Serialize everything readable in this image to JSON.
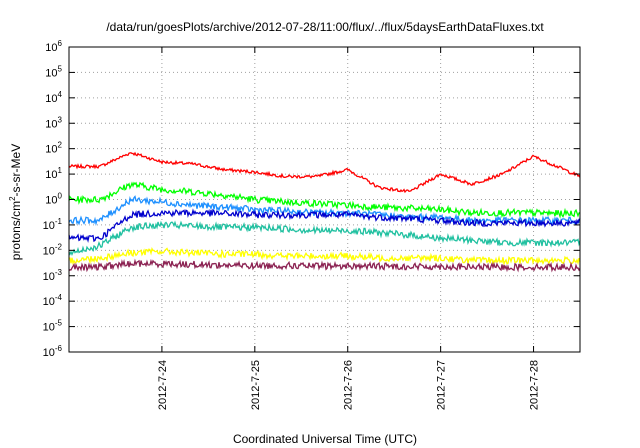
{
  "chart_data": {
    "type": "line",
    "title": "/data/run/goesPlots/archive/2012-07-28/11:00/flux/../flux/5daysEarthDataFluxes.txt",
    "xlabel": "Coordinated Universal Time (UTC)",
    "ylabel": "protons/cm²-s-sr-MeV",
    "ylabel_base": "protons/cm",
    "ylabel_sup": "2",
    "ylabel_rest": "-s-sr-MeV",
    "x_scale": "time",
    "xlim": [
      "2012-07-23T00:00",
      "2012-07-28T12:00"
    ],
    "x_ticks": [
      {
        "label": "2012-7-24",
        "date": "2012-07-24T00:00"
      },
      {
        "label": "2012-7-25",
        "date": "2012-07-25T00:00"
      },
      {
        "label": "2012-7-26",
        "date": "2012-07-26T00:00"
      },
      {
        "label": "2012-7-27",
        "date": "2012-07-27T00:00"
      },
      {
        "label": "2012-7-28",
        "date": "2012-07-28T00:00"
      }
    ],
    "y_scale": "log",
    "ylim": [
      1e-06,
      1000000.0
    ],
    "y_ticks": [
      {
        "base": "10",
        "exp": "6"
      },
      {
        "base": "10",
        "exp": "5"
      },
      {
        "base": "10",
        "exp": "4"
      },
      {
        "base": "10",
        "exp": "3"
      },
      {
        "base": "10",
        "exp": "2"
      },
      {
        "base": "10",
        "exp": "1"
      },
      {
        "base": "10",
        "exp": "0"
      },
      {
        "base": "10",
        "exp": "-1"
      },
      {
        "base": "10",
        "exp": "-2"
      },
      {
        "base": "10",
        "exp": "-3"
      },
      {
        "base": "10",
        "exp": "-4"
      },
      {
        "base": "10",
        "exp": "-5"
      },
      {
        "base": "10",
        "exp": "-6"
      }
    ],
    "grid": true,
    "legend": "none",
    "series": [
      {
        "color": "#ff0000",
        "x": [
          "2012-07-23T00:00",
          "2012-07-23T08:00",
          "2012-07-23T16:00",
          "2012-07-24T00:00",
          "2012-07-24T08:00",
          "2012-07-24T16:00",
          "2012-07-25T00:00",
          "2012-07-25T08:00",
          "2012-07-25T16:00",
          "2012-07-26T00:00",
          "2012-07-26T08:00",
          "2012-07-26T16:00",
          "2012-07-27T00:00",
          "2012-07-27T08:00",
          "2012-07-27T16:00",
          "2012-07-28T00:00",
          "2012-07-28T08:00",
          "2012-07-28T12:00"
        ],
        "y": [
          20,
          20,
          70,
          30,
          25,
          15,
          12,
          8,
          8,
          15,
          3,
          2,
          10,
          4,
          10,
          50,
          15,
          8
        ]
      },
      {
        "color": "#00ff00",
        "x": [
          "2012-07-23T00:00",
          "2012-07-23T08:00",
          "2012-07-23T16:00",
          "2012-07-24T00:00",
          "2012-07-24T08:00",
          "2012-07-24T16:00",
          "2012-07-25T00:00",
          "2012-07-25T08:00",
          "2012-07-25T16:00",
          "2012-07-26T00:00",
          "2012-07-26T08:00",
          "2012-07-26T16:00",
          "2012-07-27T00:00",
          "2012-07-27T08:00",
          "2012-07-27T16:00",
          "2012-07-28T00:00",
          "2012-07-28T08:00",
          "2012-07-28T12:00"
        ],
        "y": [
          1,
          1,
          4,
          2.5,
          2,
          1.5,
          1,
          0.8,
          0.7,
          0.6,
          0.5,
          0.45,
          0.4,
          0.3,
          0.3,
          0.3,
          0.28,
          0.3
        ]
      },
      {
        "color": "#1e90ff",
        "x": [
          "2012-07-23T00:00",
          "2012-07-23T08:00",
          "2012-07-23T16:00",
          "2012-07-24T00:00",
          "2012-07-24T08:00",
          "2012-07-24T16:00",
          "2012-07-25T00:00",
          "2012-07-25T08:00",
          "2012-07-25T16:00",
          "2012-07-26T00:00",
          "2012-07-26T08:00",
          "2012-07-26T16:00",
          "2012-07-27T00:00",
          "2012-07-27T08:00",
          "2012-07-27T16:00",
          "2012-07-28T00:00",
          "2012-07-28T08:00",
          "2012-07-28T12:00"
        ],
        "y": [
          0.15,
          0.15,
          1,
          0.8,
          0.6,
          0.5,
          0.4,
          0.35,
          0.3,
          0.3,
          0.25,
          0.2,
          0.2,
          0.15,
          0.15,
          0.15,
          0.15,
          0.15
        ]
      },
      {
        "color": "#0000cd",
        "x": [
          "2012-07-23T00:00",
          "2012-07-23T08:00",
          "2012-07-23T16:00",
          "2012-07-24T00:00",
          "2012-07-24T08:00",
          "2012-07-24T16:00",
          "2012-07-25T00:00",
          "2012-07-25T08:00",
          "2012-07-25T16:00",
          "2012-07-26T00:00",
          "2012-07-26T08:00",
          "2012-07-26T16:00",
          "2012-07-27T00:00",
          "2012-07-27T08:00",
          "2012-07-27T16:00",
          "2012-07-28T00:00",
          "2012-07-28T08:00",
          "2012-07-28T12:00"
        ],
        "y": [
          0.03,
          0.03,
          0.25,
          0.3,
          0.3,
          0.28,
          0.25,
          0.25,
          0.25,
          0.25,
          0.2,
          0.18,
          0.15,
          0.12,
          0.12,
          0.12,
          0.12,
          0.12
        ]
      },
      {
        "color": "#20c0a0",
        "x": [
          "2012-07-23T00:00",
          "2012-07-23T08:00",
          "2012-07-23T16:00",
          "2012-07-24T00:00",
          "2012-07-24T08:00",
          "2012-07-24T16:00",
          "2012-07-25T00:00",
          "2012-07-25T08:00",
          "2012-07-25T16:00",
          "2012-07-26T00:00",
          "2012-07-26T08:00",
          "2012-07-26T16:00",
          "2012-07-27T00:00",
          "2012-07-27T08:00",
          "2012-07-27T16:00",
          "2012-07-28T00:00",
          "2012-07-28T08:00",
          "2012-07-28T12:00"
        ],
        "y": [
          0.008,
          0.015,
          0.08,
          0.1,
          0.09,
          0.08,
          0.08,
          0.07,
          0.06,
          0.06,
          0.05,
          0.04,
          0.03,
          0.025,
          0.02,
          0.02,
          0.02,
          0.02
        ]
      },
      {
        "color": "#ffff00",
        "x": [
          "2012-07-23T00:00",
          "2012-07-23T08:00",
          "2012-07-23T16:00",
          "2012-07-24T00:00",
          "2012-07-24T08:00",
          "2012-07-24T16:00",
          "2012-07-25T00:00",
          "2012-07-25T08:00",
          "2012-07-25T16:00",
          "2012-07-26T00:00",
          "2012-07-26T08:00",
          "2012-07-26T16:00",
          "2012-07-27T00:00",
          "2012-07-27T08:00",
          "2012-07-27T16:00",
          "2012-07-28T00:00",
          "2012-07-28T08:00",
          "2012-07-28T12:00"
        ],
        "y": [
          0.004,
          0.005,
          0.008,
          0.009,
          0.008,
          0.007,
          0.007,
          0.006,
          0.006,
          0.006,
          0.005,
          0.005,
          0.005,
          0.004,
          0.004,
          0.004,
          0.004,
          0.004
        ]
      },
      {
        "color": "#8b2252",
        "x": [
          "2012-07-23T00:00",
          "2012-07-23T08:00",
          "2012-07-23T16:00",
          "2012-07-24T00:00",
          "2012-07-24T08:00",
          "2012-07-24T16:00",
          "2012-07-25T00:00",
          "2012-07-25T08:00",
          "2012-07-25T16:00",
          "2012-07-26T00:00",
          "2012-07-26T08:00",
          "2012-07-26T16:00",
          "2012-07-27T00:00",
          "2012-07-27T08:00",
          "2012-07-27T16:00",
          "2012-07-28T00:00",
          "2012-07-28T08:00",
          "2012-07-28T12:00"
        ],
        "y": [
          0.002,
          0.0022,
          0.003,
          0.003,
          0.0028,
          0.0026,
          0.0025,
          0.0025,
          0.0024,
          0.0024,
          0.0024,
          0.0023,
          0.0023,
          0.0022,
          0.0022,
          0.0022,
          0.0022,
          0.0022
        ]
      }
    ]
  }
}
